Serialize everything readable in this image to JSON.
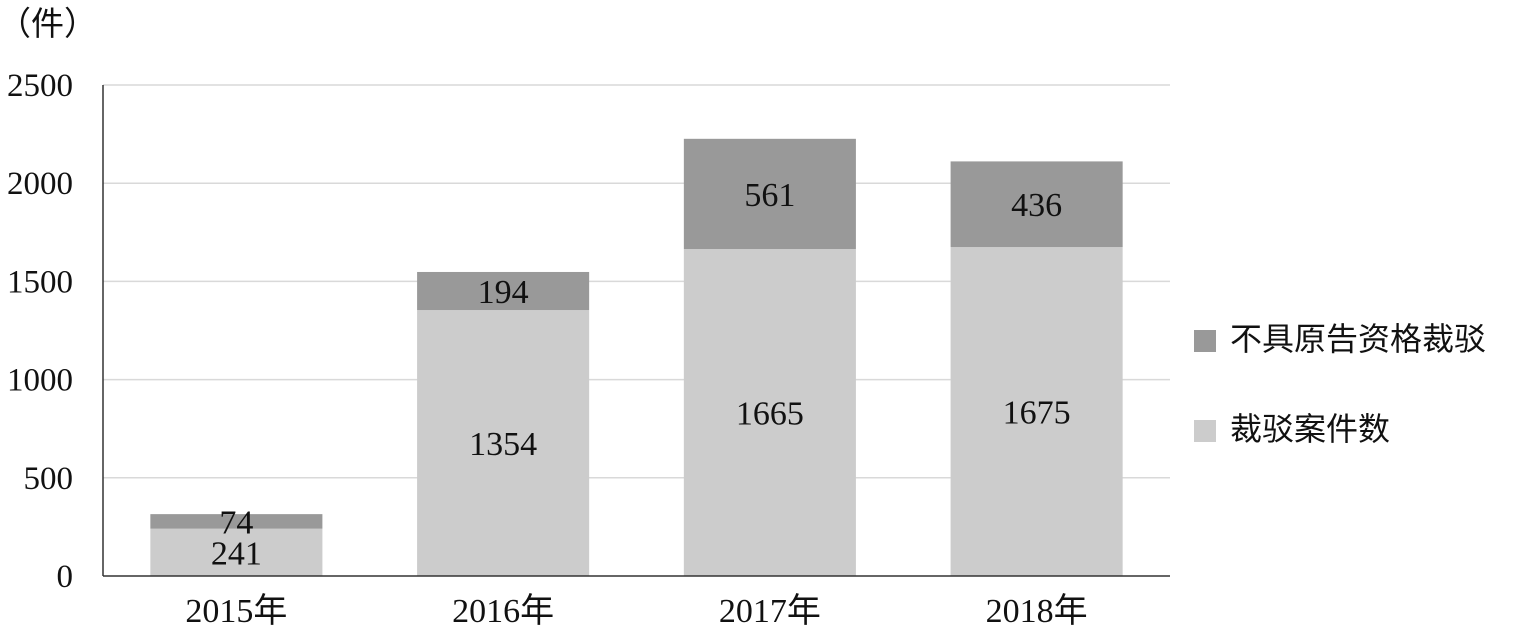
{
  "chart_data": {
    "type": "bar",
    "stacked": true,
    "title": "",
    "unit_label": "（件）",
    "categories": [
      "2015年",
      "2016年",
      "2017年",
      "2018年"
    ],
    "series": [
      {
        "name": "裁驳案件数",
        "values": [
          241,
          1354,
          1665,
          1675
        ],
        "color": "#cccccc"
      },
      {
        "name": "不具原告资格裁驳",
        "values": [
          74,
          194,
          561,
          436
        ],
        "color": "#999999"
      }
    ],
    "ylim": [
      0,
      2500
    ],
    "yticks": [
      0,
      500,
      1000,
      1500,
      2000,
      2500
    ],
    "grid": true,
    "legend": "right"
  }
}
